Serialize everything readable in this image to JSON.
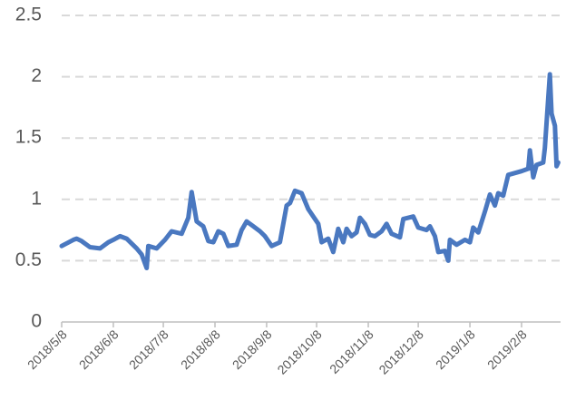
{
  "chart_data": {
    "type": "line",
    "x": [
      "2018/5/8",
      "2018/5/15",
      "2018/5/17",
      "2018/5/20",
      "2018/5/25",
      "2018/5/31",
      "2018/6/5",
      "2018/6/8",
      "2018/6/12",
      "2018/6/16",
      "2018/6/22",
      "2018/6/25",
      "2018/6/28",
      "2018/6/29",
      "2018/7/4",
      "2018/7/9",
      "2018/7/13",
      "2018/7/19",
      "2018/7/23",
      "2018/7/25",
      "2018/7/28",
      "2018/8/1",
      "2018/8/4",
      "2018/8/7",
      "2018/8/10",
      "2018/8/13",
      "2018/8/16",
      "2018/8/21",
      "2018/8/24",
      "2018/8/27",
      "2018/8/31",
      "2018/9/4",
      "2018/9/7",
      "2018/9/11",
      "2018/9/16",
      "2018/9/20",
      "2018/9/22",
      "2018/9/25",
      "2018/9/29",
      "2018/10/3",
      "2018/10/9",
      "2018/10/11",
      "2018/10/15",
      "2018/10/18",
      "2018/10/21",
      "2018/10/24",
      "2018/10/26",
      "2018/10/29",
      "2018/11/1",
      "2018/11/3",
      "2018/11/6",
      "2018/11/9",
      "2018/11/12",
      "2018/11/16",
      "2018/11/19",
      "2018/11/22",
      "2018/11/27",
      "2018/11/29",
      "2018/12/5",
      "2018/12/8",
      "2018/12/13",
      "2018/12/15",
      "2018/12/18",
      "2018/12/20",
      "2018/12/24",
      "2018/12/26",
      "2018/12/27",
      "2018/12/31",
      "2019/1/5",
      "2019/1/8",
      "2019/1/10",
      "2019/1/13",
      "2019/1/17",
      "2019/1/20",
      "2019/1/23",
      "2019/1/25",
      "2019/1/28",
      "2019/1/31",
      "2019/2/8",
      "2019/2/12",
      "2019/2/13",
      "2019/2/15",
      "2019/2/17",
      "2019/2/21",
      "2019/2/22",
      "2019/2/25",
      "2019/2/26",
      "2019/2/28",
      "2019/3/1",
      "2019/3/2"
    ],
    "series": [
      {
        "color": "#4a78c0",
        "values": [
          0.62,
          0.67,
          0.68,
          0.66,
          0.61,
          0.6,
          0.65,
          0.67,
          0.7,
          0.68,
          0.6,
          0.55,
          0.44,
          0.62,
          0.6,
          0.67,
          0.74,
          0.72,
          0.85,
          1.06,
          0.82,
          0.78,
          0.66,
          0.65,
          0.74,
          0.72,
          0.62,
          0.63,
          0.75,
          0.82,
          0.78,
          0.74,
          0.7,
          0.62,
          0.65,
          0.95,
          0.97,
          1.07,
          1.05,
          0.92,
          0.8,
          0.65,
          0.68,
          0.57,
          0.76,
          0.65,
          0.76,
          0.7,
          0.73,
          0.85,
          0.8,
          0.71,
          0.7,
          0.74,
          0.8,
          0.72,
          0.69,
          0.84,
          0.86,
          0.77,
          0.75,
          0.78,
          0.7,
          0.57,
          0.58,
          0.5,
          0.67,
          0.63,
          0.67,
          0.65,
          0.77,
          0.73,
          0.9,
          1.04,
          0.95,
          1.05,
          1.03,
          1.2,
          1.23,
          1.25,
          1.4,
          1.18,
          1.28,
          1.3,
          1.42,
          2.02,
          1.7,
          1.6,
          1.27,
          1.3
        ]
      }
    ],
    "xlim": [
      "2018/5/8",
      "2019/3/3"
    ],
    "xticks": [
      "2018/5/8",
      "2018/6/8",
      "2018/7/8",
      "2018/8/8",
      "2018/9/8",
      "2018/10/8",
      "2018/11/8",
      "2018/12/8",
      "2019/1/8",
      "2019/2/8"
    ],
    "ylim": [
      0,
      2.5
    ],
    "yticks": [
      0,
      0.5,
      1,
      1.5,
      2,
      2.5
    ],
    "grid": true
  }
}
